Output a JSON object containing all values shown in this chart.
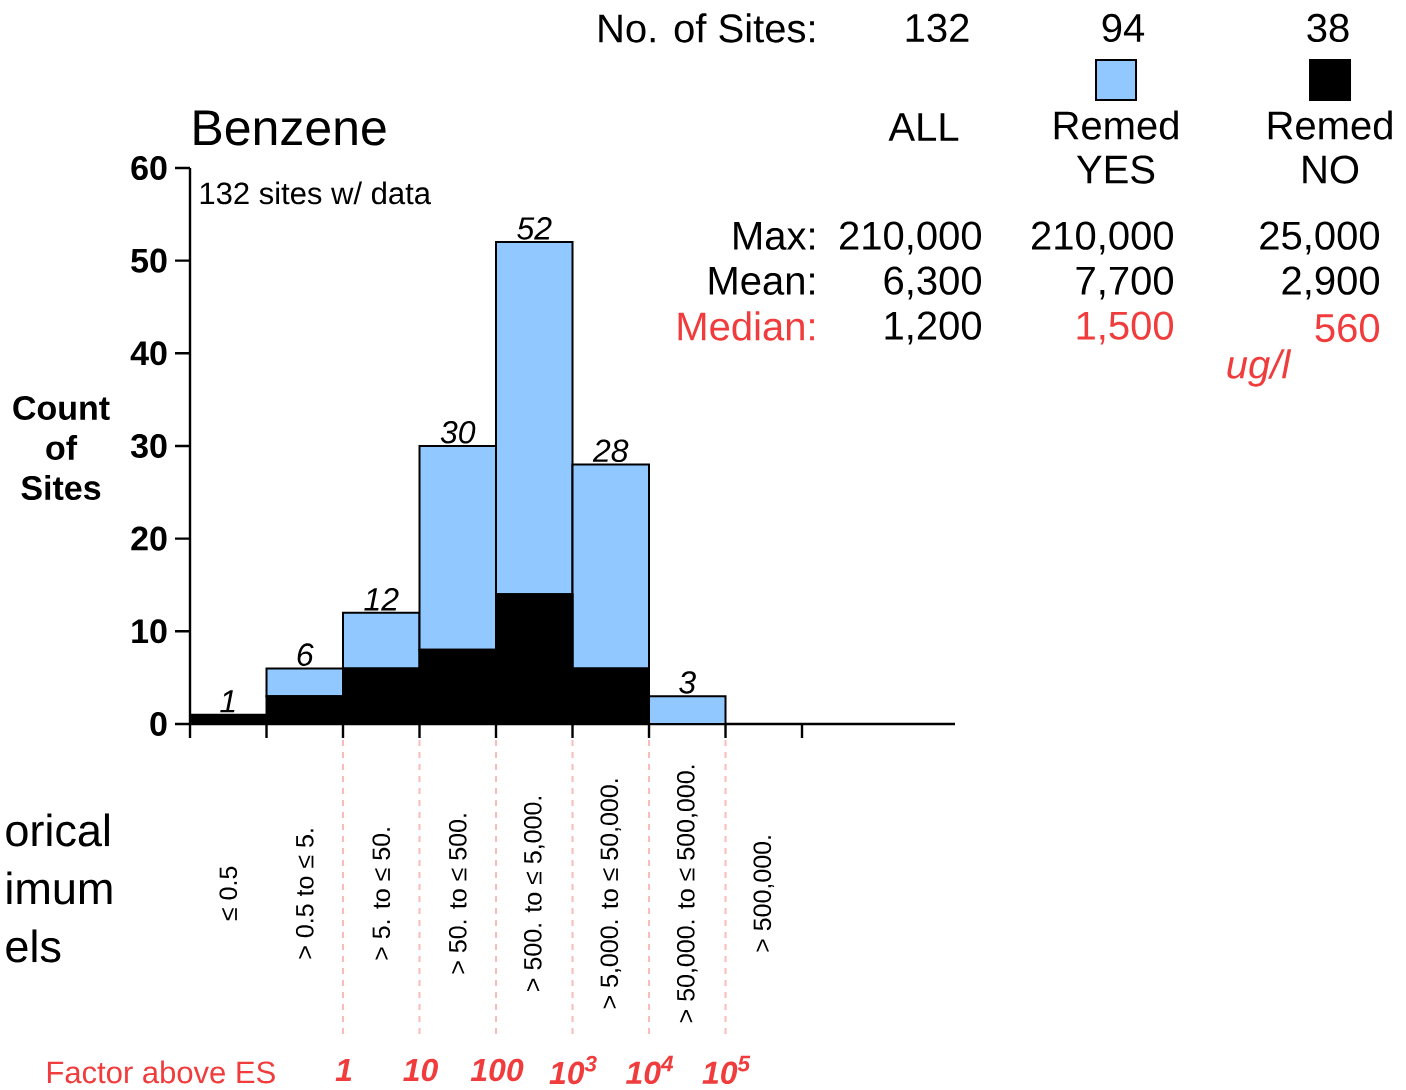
{
  "chart_data": {
    "type": "bar",
    "stacked": true,
    "title": "Benzene",
    "ylabel": "Count of Sites",
    "categories": [
      "≤ 0.5",
      "> 0.5  to ≤ 5.",
      "> 5.  to ≤ 50.",
      "> 50.  to ≤ 500.",
      "> 500.  to ≤ 5,000.",
      "> 5,000.  to ≤ 50,000.",
      "> 50,000.  to ≤ 500,000.",
      "> 500,000."
    ],
    "series": [
      {
        "name": "Remed NO",
        "color": "#000000",
        "values": [
          1,
          3,
          6,
          8,
          14,
          6,
          0,
          0
        ]
      },
      {
        "name": "Remed YES",
        "color": "#90c8ff",
        "values": [
          0,
          3,
          6,
          22,
          38,
          22,
          3,
          0
        ]
      }
    ],
    "totals": [
      "1",
      "6",
      "12",
      "30",
      "52",
      "28",
      "3",
      null
    ],
    "ylim": [
      0,
      60
    ],
    "yticks": [
      0,
      10,
      20,
      30,
      40,
      50,
      60
    ],
    "legend": "top right",
    "annotations": [
      "No. of Sites:",
      "132",
      "94",
      "38",
      "ALL",
      "Max:",
      "210,000",
      "210,000",
      "25,000",
      "Mean:",
      "6,300",
      "7,700",
      "2,900",
      "Median:",
      "1,200",
      "1,500",
      "560",
      "ug/l",
      "132 sites w/ data",
      "orical imum els",
      "Factor above ES",
      "1",
      "10",
      "100",
      "10$^{3}$",
      "10$^{4}$",
      "10$^{5}$"
    ]
  }
}
